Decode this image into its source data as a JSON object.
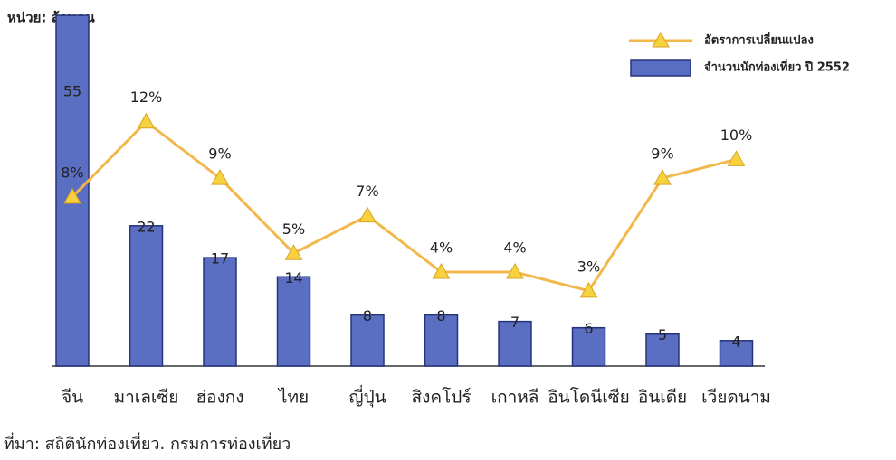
{
  "chart_data": {
    "type": "bar",
    "unit_label": "หน่วย: ล้านคน",
    "source": "ที่มา: สถิตินักท่องเที่ยว. กรมการท่องเที่ยว",
    "categories": [
      "จีน",
      "มาเลเซีย",
      "ฮ่องกง",
      "ไทย",
      "ญี่ปุ่น",
      "สิงคโปร์",
      "เกาหลี",
      "อินโดนีเซีย",
      "อินเดีย",
      "เวียดนาม"
    ],
    "ylim": [
      0,
      56
    ],
    "y2lim": [
      -1,
      18
    ],
    "series": [
      {
        "name": "จำนวนนักท่องเที่ยว ปี 2552",
        "type": "bar",
        "color": "#5a6ec2",
        "values": [
          55,
          22,
          17,
          14,
          8,
          8,
          7,
          6,
          5,
          4
        ]
      },
      {
        "name": "อัตราการเปลี่ยนแปลง",
        "type": "line",
        "axis": "y2",
        "color": "#f2b84b",
        "values": [
          8,
          12,
          9,
          5,
          7,
          4,
          4,
          3,
          9,
          10
        ],
        "value_labels": [
          "8%",
          "12%",
          "9%",
          "5%",
          "7%",
          "4%",
          "4%",
          "3%",
          "9%",
          "10%"
        ]
      }
    ]
  }
}
